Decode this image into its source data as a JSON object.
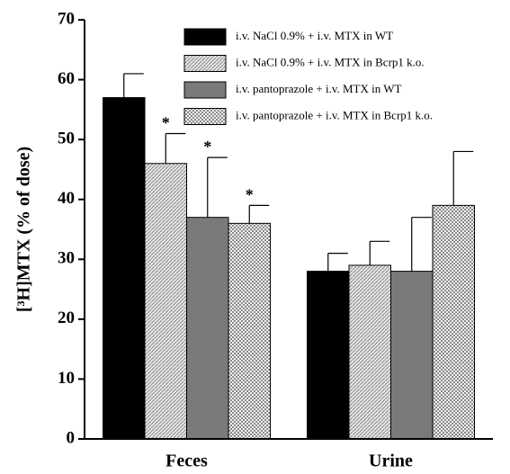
{
  "chart_data": {
    "type": "bar",
    "y_label": "[³H]MTX (% of dose)",
    "categories": [
      "Feces",
      "Urine"
    ],
    "series": [
      {
        "name": "i.v. NaCl 0.9% + i.v. MTX in WT",
        "color": "#000000",
        "pattern": "solid",
        "values": [
          57,
          28
        ],
        "errors": [
          4,
          3
        ],
        "markers": [
          null,
          null
        ]
      },
      {
        "name": "i.v. NaCl 0.9% + i.v. MTX in Bcrp1 k.o.",
        "color": "#c4c4c4",
        "pattern": "hatch",
        "values": [
          46,
          29
        ],
        "errors": [
          5,
          4
        ],
        "markers": [
          "*",
          null
        ]
      },
      {
        "name": "i.v. pantoprazole + i.v. MTX in WT",
        "color": "#7a7a7a",
        "pattern": "solid",
        "values": [
          37,
          28
        ],
        "errors": [
          10,
          9
        ],
        "markers": [
          "*",
          null
        ]
      },
      {
        "name": "i.v. pantoprazole + i.v. MTX in Bcrp1 k.o.",
        "color": "#bdbdbd",
        "pattern": "checker",
        "values": [
          36,
          39
        ],
        "errors": [
          3,
          9
        ],
        "markers": [
          "*",
          null
        ]
      }
    ],
    "ylim": [
      0,
      70
    ],
    "yticks": [
      0,
      10,
      20,
      30,
      40,
      50,
      60,
      70
    ],
    "grid": false,
    "legend": "top-right"
  }
}
